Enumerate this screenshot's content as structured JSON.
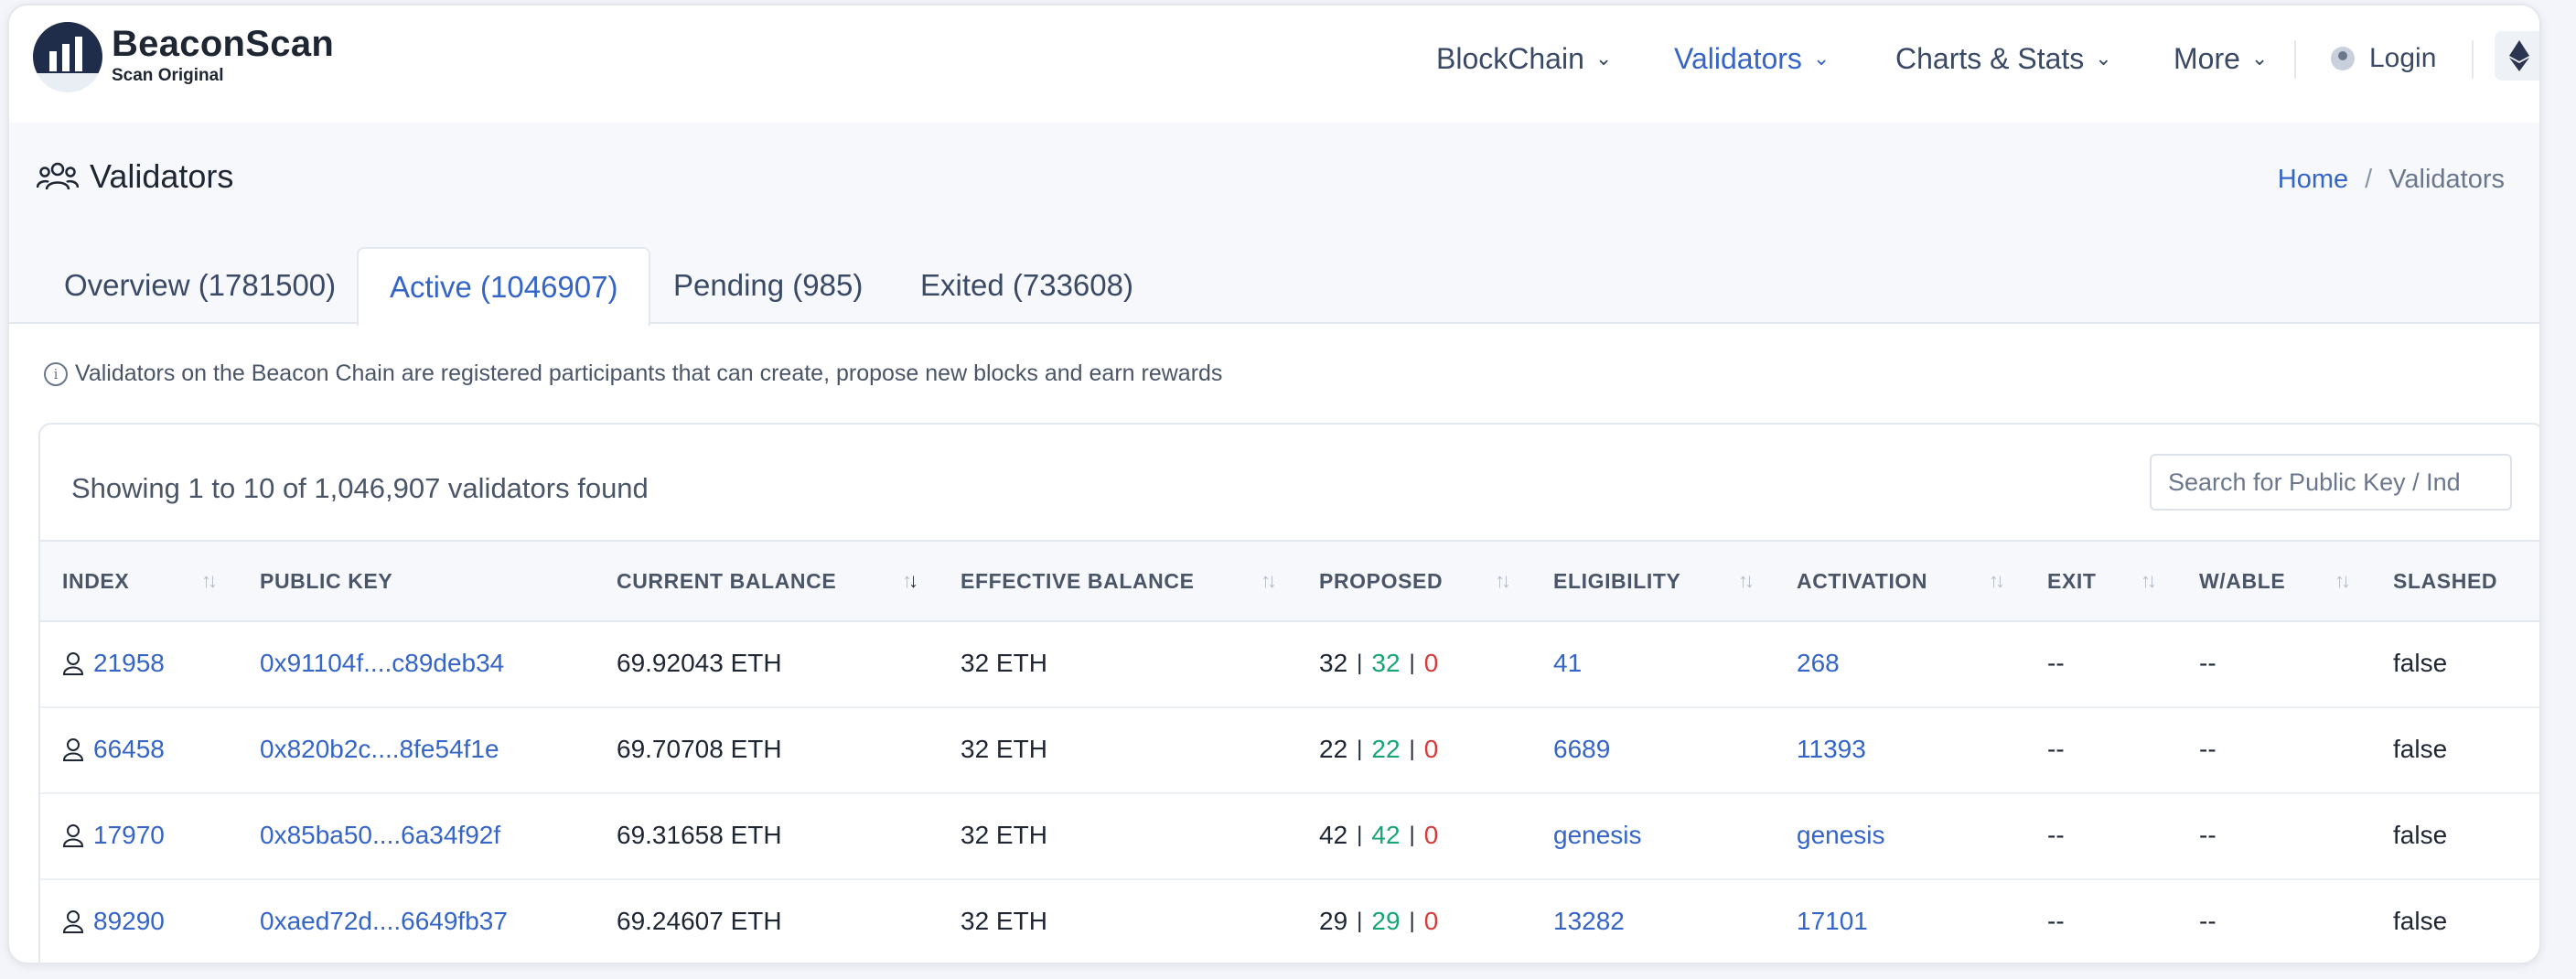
{
  "brand": {
    "name": "BeaconScan",
    "subtitle": "Scan Original"
  },
  "nav": {
    "items": [
      {
        "label": "BlockChain"
      },
      {
        "label": "Validators"
      },
      {
        "label": "Charts & Stats"
      },
      {
        "label": "More"
      }
    ],
    "login_label": "Login"
  },
  "page": {
    "title": "Validators",
    "breadcrumb": {
      "home": "Home",
      "separator": "/",
      "current": "Validators"
    }
  },
  "tabs": [
    {
      "label": "Overview (1781500)"
    },
    {
      "label": "Active (1046907)"
    },
    {
      "label": "Pending (985)"
    },
    {
      "label": "Exited (733608)"
    }
  ],
  "info_text": "Validators on the Beacon Chain are registered participants that can create, propose new blocks and earn rewards",
  "table": {
    "showing_text": "Showing 1 to 10 of 1,046,907 validators found",
    "search_placeholder": "Search for Public Key / Ind",
    "columns": [
      "INDEX",
      "PUBLIC KEY",
      "CURRENT BALANCE",
      "EFFECTIVE BALANCE",
      "PROPOSED",
      "ELIGIBILITY",
      "ACTIVATION",
      "EXIT",
      "W/ABLE",
      "SLASHED"
    ],
    "rows": [
      {
        "index": "21958",
        "pubkey": "0x91104f....c89deb34",
        "current_balance": "69.92043 ETH",
        "effective_balance": "32 ETH",
        "proposed_total": "32",
        "proposed_ok": "32",
        "proposed_missed": "0",
        "eligibility": "41",
        "activation": "268",
        "exit": "--",
        "withdrawable": "--",
        "slashed": "false"
      },
      {
        "index": "66458",
        "pubkey": "0x820b2c....8fe54f1e",
        "current_balance": "69.70708 ETH",
        "effective_balance": "32 ETH",
        "proposed_total": "22",
        "proposed_ok": "22",
        "proposed_missed": "0",
        "eligibility": "6689",
        "activation": "11393",
        "exit": "--",
        "withdrawable": "--",
        "slashed": "false"
      },
      {
        "index": "17970",
        "pubkey": "0x85ba50....6a34f92f",
        "current_balance": "69.31658 ETH",
        "effective_balance": "32 ETH",
        "proposed_total": "42",
        "proposed_ok": "42",
        "proposed_missed": "0",
        "eligibility": "genesis",
        "activation": "genesis",
        "exit": "--",
        "withdrawable": "--",
        "slashed": "false"
      },
      {
        "index": "89290",
        "pubkey": "0xaed72d....6649fb37",
        "current_balance": "69.24607 ETH",
        "effective_balance": "32 ETH",
        "proposed_total": "29",
        "proposed_ok": "29",
        "proposed_missed": "0",
        "eligibility": "13282",
        "activation": "17101",
        "exit": "--",
        "withdrawable": "--",
        "slashed": "false"
      }
    ]
  },
  "colors": {
    "accent": "#3565c7",
    "success": "#17a673",
    "danger": "#d63b3b",
    "text": "#1e2633"
  },
  "icons": {
    "logo": "beaconscan-logo",
    "title": "users-icon",
    "row": "user-icon",
    "network": "ethereum-icon",
    "sort": "sort-arrows-icon"
  }
}
